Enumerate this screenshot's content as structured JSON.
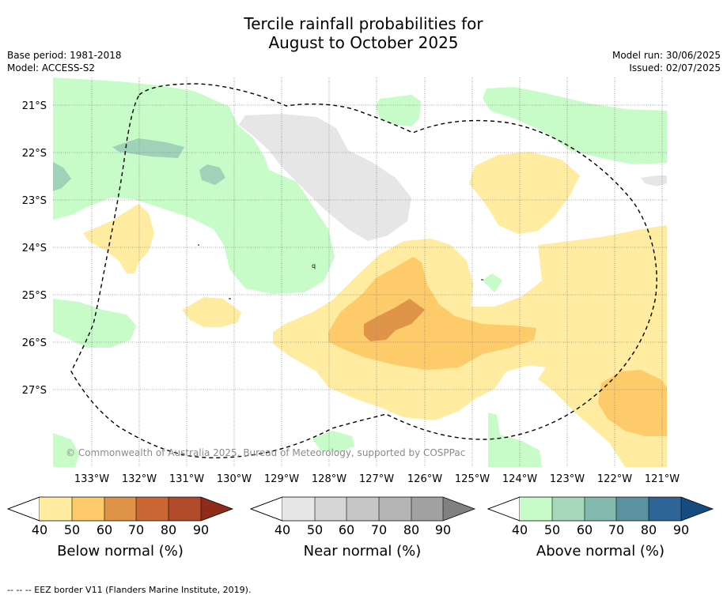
{
  "header": {
    "title_line1": "Tercile rainfall probabilities for",
    "title_line2": "August to October 2025",
    "base_period": "Base period: 1981-2018",
    "model": "Model: ACCESS-S2",
    "model_run": "Model run: 30/06/2025",
    "issued": "Issued: 02/07/2025"
  },
  "map": {
    "lat_labels": [
      "21°S",
      "22°S",
      "23°S",
      "24°S",
      "25°S",
      "26°S",
      "27°S"
    ],
    "lon_labels": [
      "133°W",
      "132°W",
      "131°W",
      "130°W",
      "129°W",
      "128°W",
      "127°W",
      "126°W",
      "125°W",
      "124°W",
      "123°W",
      "122°W",
      "121°W"
    ],
    "copyright": "© Commonwealth of Australia 2025, Bureau of Meteorology, supported by COSPPac",
    "palette": {
      "below_40": "#ffeca0",
      "below_50": "#fdcb6a",
      "below_60": "#e0944a",
      "near_40": "#e6e6e6",
      "above_40": "#c7fbc8",
      "above_50": "#a6d8bc"
    }
  },
  "colorbars": [
    {
      "title": "Below normal (%)",
      "ticks": [
        "40",
        "50",
        "60",
        "70",
        "80",
        "90"
      ],
      "colors": [
        "#ffeca0",
        "#fdcb6a",
        "#e0944a",
        "#cc6634",
        "#b14a2a",
        "#8e2b1a"
      ]
    },
    {
      "title": "Near normal (%)",
      "ticks": [
        "40",
        "50",
        "60",
        "70",
        "80",
        "90"
      ],
      "colors": [
        "#e6e6e6",
        "#d6d6d6",
        "#c6c6c6",
        "#b4b4b4",
        "#a2a2a2",
        "#808080"
      ]
    },
    {
      "title": "Above normal (%)",
      "ticks": [
        "40",
        "50",
        "60",
        "70",
        "80",
        "90"
      ],
      "colors": [
        "#c7fbc8",
        "#a6d8bc",
        "#84b9b0",
        "#5a92a0",
        "#2e6496",
        "#164b80"
      ]
    }
  ],
  "footnote": "--  --  -- EEZ border V11 (Flanders Marine Institute, 2019)."
}
